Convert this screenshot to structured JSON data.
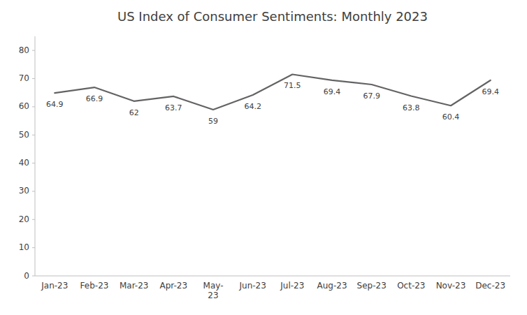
{
  "chart_data": {
    "type": "line",
    "title": "US Index of Consumer Sentiments: Monthly 2023",
    "categories": [
      "Jan-23",
      "Feb-23",
      "Mar-23",
      "Apr-23",
      "May-\n23",
      "Jun-23",
      "Jul-23",
      "Aug-23",
      "Sep-23",
      "Oct-23",
      "Nov-23",
      "Dec-23"
    ],
    "values": [
      64.9,
      66.9,
      62.0,
      63.7,
      59.0,
      64.2,
      71.5,
      69.4,
      67.9,
      63.8,
      60.4,
      69.4
    ],
    "color": "#636363",
    "ylim": [
      0,
      85
    ],
    "yticks": [
      0,
      10,
      20,
      30,
      40,
      50,
      60,
      70,
      80
    ],
    "data_labels": true,
    "grid": false
  }
}
